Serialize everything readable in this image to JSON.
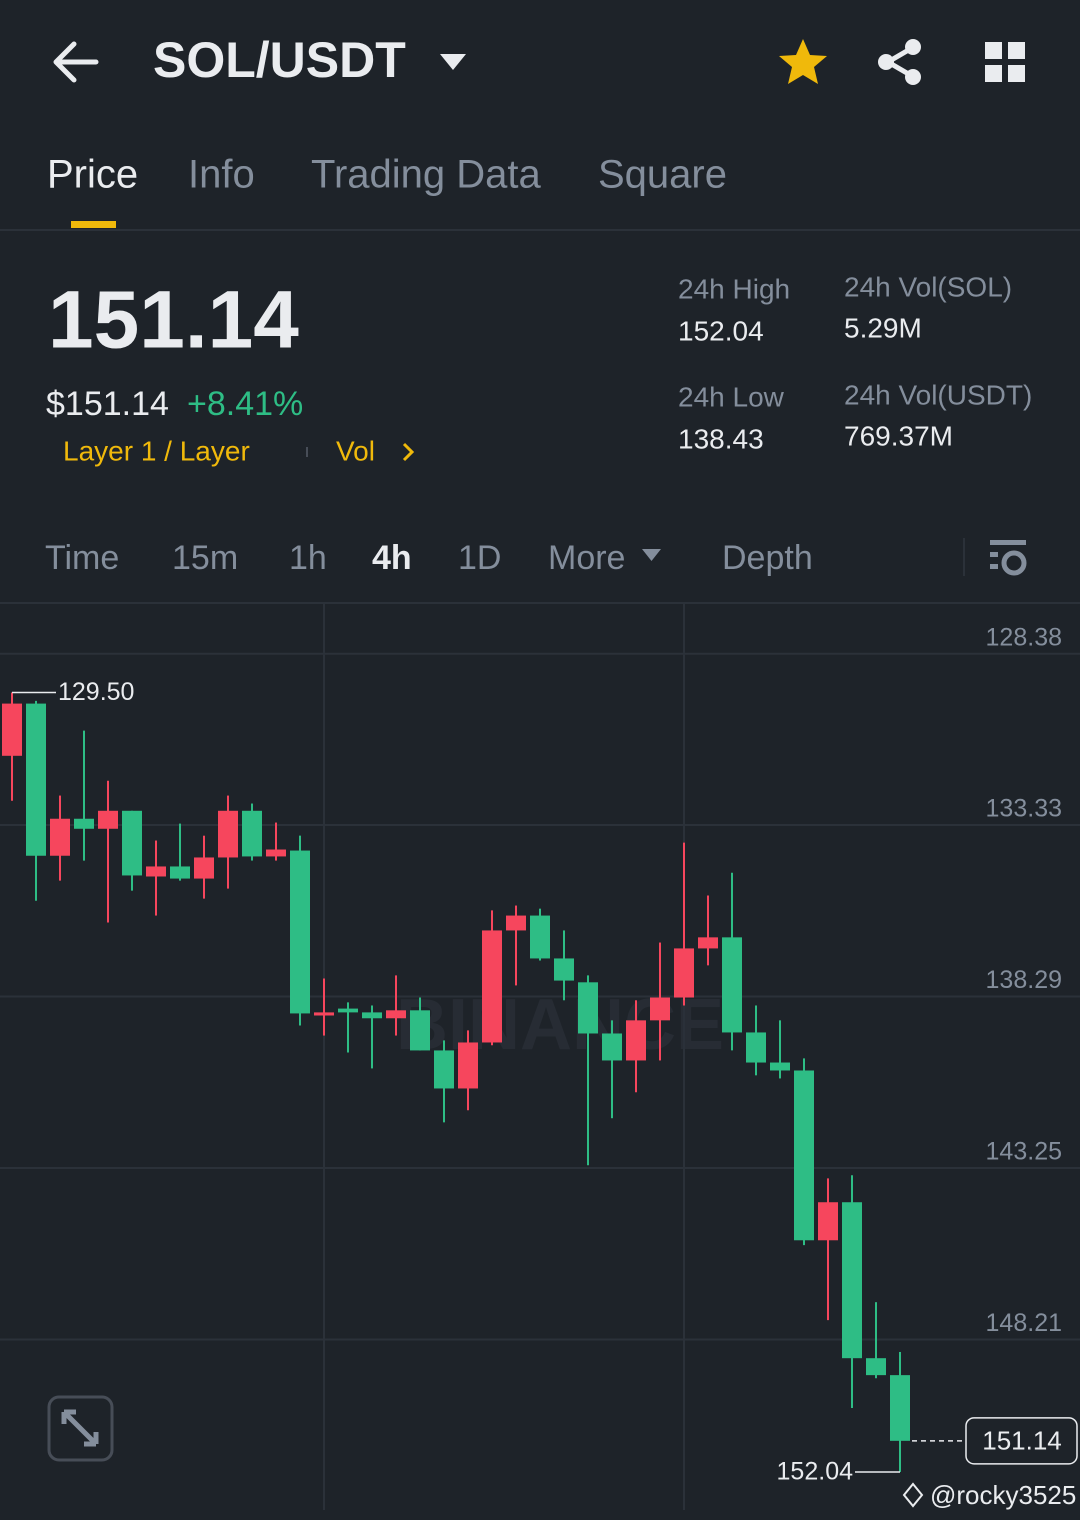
{
  "header": {
    "pair": "SOL/USDT"
  },
  "tabs": [
    "Price",
    "Info",
    "Trading Data",
    "Square"
  ],
  "price": {
    "last": "151.14",
    "usd": "$151.14",
    "change": "+8.41%",
    "tags": [
      "Layer 1 / Layer",
      "Vol"
    ]
  },
  "stats": [
    {
      "label": "24h High",
      "value": "152.04"
    },
    {
      "label": "24h Vol(SOL)",
      "value": "5.29M"
    },
    {
      "label": "24h Low",
      "value": "138.43"
    },
    {
      "label": "24h Vol(USDT)",
      "value": "769.37M"
    }
  ],
  "intervals": [
    "Time",
    "15m",
    "1h",
    "4h",
    "1D",
    "More",
    "Depth"
  ],
  "chart_data": {
    "type": "candlestick",
    "up_color": "#2ebd85",
    "down_color": "#f6465d",
    "open": [
      131.33,
      129.82,
      134.22,
      133.15,
      133.44,
      132.92,
      134.82,
      134.53,
      134.88,
      134.27,
      132.92,
      134.24,
      134.07,
      138.84,
      138.64,
      138.75,
      138.92,
      138.69,
      139.85,
      140.95,
      139.62,
      136.38,
      135.95,
      137.19,
      137.88,
      139.36,
      140.14,
      138.98,
      138.32,
      136.9,
      136.58,
      139.33,
      140.2,
      140.43,
      145.34,
      144.24,
      148.75,
      149.24
    ],
    "high": [
      132.63,
      135.52,
      134.94,
      134.36,
      136.15,
      135.23,
      135.95,
      134.94,
      135.46,
      135.17,
      134.36,
      134.36,
      139.13,
      139.42,
      139.91,
      140.37,
      139.42,
      139.85,
      141.93,
      141.58,
      139.7,
      137.97,
      137.25,
      138.4,
      143.17,
      141.81,
      141.06,
      140.14,
      138.55,
      137.39,
      139.85,
      140.57,
      140.66,
      145.48,
      147.65,
      150.19,
      149.33,
      152.04
    ],
    "low": [
      129.5,
      129.74,
      132.48,
      130.6,
      132.05,
      132.92,
      133.78,
      133.29,
      133.64,
      132.48,
      132.71,
      133.26,
      133.64,
      137.77,
      138.46,
      138.55,
      137.68,
      138.32,
      139.56,
      139.27,
      135.8,
      135.66,
      135.75,
      136.38,
      137.68,
      138.98,
      138.4,
      136.73,
      133.84,
      135.37,
      134.71,
      138.55,
      138.98,
      140.08,
      143.55,
      143.46,
      147.13,
      148.57
    ],
    "close": [
      129.82,
      134.22,
      133.15,
      133.44,
      132.92,
      134.79,
      134.53,
      134.88,
      134.27,
      132.92,
      134.24,
      134.04,
      138.78,
      138.75,
      138.75,
      138.92,
      138.69,
      139.85,
      140.95,
      139.62,
      136.38,
      135.95,
      137.19,
      137.83,
      139.36,
      140.14,
      138.98,
      138.32,
      136.9,
      136.58,
      139.33,
      140.2,
      140.43,
      145.34,
      144.24,
      148.75,
      149.24,
      151.14
    ],
    "ylim": [
      153.14,
      126.94
    ],
    "yticks": [
      128.38,
      133.33,
      138.29,
      143.25,
      148.21
    ],
    "grid": true,
    "annotations": {
      "low": {
        "value": 129.5,
        "label": "129.50"
      },
      "high": 152.04,
      "last": 151.14
    },
    "watermark": "BINANCE",
    "credit": "@rocky3525"
  }
}
